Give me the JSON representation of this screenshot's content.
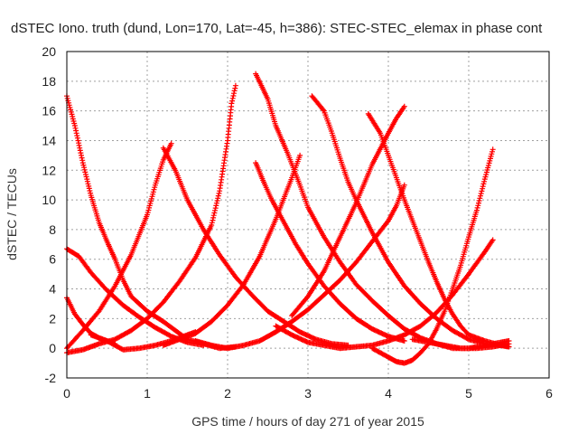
{
  "chart_data": {
    "type": "scatter",
    "title": "dSTEC Iono. truth (dund, Lon=170, Lat=-45, h=386): STEC-STEC_elemax in phase cont",
    "xlabel": "GPS time / hours of day 271 of year 2015",
    "ylabel": "dSTEC  / TECUs",
    "xlim": [
      0,
      6
    ],
    "ylim": [
      -2,
      20
    ],
    "x_ticks": [
      "0",
      "1",
      "2",
      "3",
      "4",
      "5",
      "6"
    ],
    "y_ticks": [
      "-2",
      "0",
      "2",
      "4",
      "6",
      "8",
      "10",
      "12",
      "14",
      "16",
      "18",
      "20"
    ],
    "grid": true,
    "marker": "+",
    "color": "#ff0000",
    "series": [
      {
        "points": [
          [
            0.0,
            17.0
          ],
          [
            0.1,
            15.0
          ],
          [
            0.2,
            12.5
          ],
          [
            0.3,
            10.3
          ],
          [
            0.4,
            8.5
          ],
          [
            0.5,
            7.2
          ],
          [
            0.6,
            6.0
          ],
          [
            0.7,
            4.6
          ],
          [
            0.8,
            3.5
          ],
          [
            1.0,
            2.5
          ],
          [
            1.2,
            1.8
          ],
          [
            1.4,
            1.0
          ],
          [
            1.5,
            0.6
          ],
          [
            1.7,
            0.3
          ],
          [
            1.9,
            0.0
          ],
          [
            2.1,
            0.1
          ]
        ]
      },
      {
        "points": [
          [
            0.0,
            3.4
          ],
          [
            0.1,
            2.3
          ],
          [
            0.2,
            1.6
          ],
          [
            0.3,
            1.0
          ],
          [
            0.4,
            0.7
          ],
          [
            0.5,
            0.5
          ],
          [
            0.6,
            0.3
          ]
        ]
      },
      {
        "points": [
          [
            0.0,
            6.7
          ],
          [
            0.15,
            6.2
          ],
          [
            0.3,
            5.1
          ],
          [
            0.5,
            3.9
          ],
          [
            0.7,
            2.9
          ],
          [
            0.9,
            2.1
          ],
          [
            1.1,
            1.4
          ],
          [
            1.3,
            0.8
          ],
          [
            1.5,
            0.4
          ],
          [
            1.7,
            0.2
          ]
        ]
      },
      {
        "points": [
          [
            0.0,
            -0.3
          ],
          [
            0.2,
            -0.1
          ],
          [
            0.4,
            0.3
          ],
          [
            0.6,
            0.6
          ],
          [
            0.8,
            1.2
          ],
          [
            1.0,
            2.0
          ],
          [
            1.2,
            3.1
          ],
          [
            1.4,
            4.5
          ],
          [
            1.6,
            6.1
          ],
          [
            1.8,
            8.3
          ],
          [
            1.9,
            10.6
          ],
          [
            2.0,
            14.0
          ],
          [
            2.05,
            16.5
          ],
          [
            2.1,
            17.7
          ]
        ]
      },
      {
        "points": [
          [
            0.0,
            0.0
          ],
          [
            0.2,
            1.2
          ],
          [
            0.4,
            2.5
          ],
          [
            0.6,
            4.2
          ],
          [
            0.8,
            6.3
          ],
          [
            1.0,
            9.0
          ],
          [
            1.1,
            11.0
          ],
          [
            1.2,
            12.7
          ],
          [
            1.3,
            13.8
          ]
        ]
      },
      {
        "points": [
          [
            1.2,
            13.5
          ],
          [
            1.35,
            12.0
          ],
          [
            1.5,
            10.0
          ],
          [
            1.7,
            8.0
          ],
          [
            1.9,
            6.3
          ],
          [
            2.1,
            4.8
          ],
          [
            2.3,
            3.6
          ],
          [
            2.5,
            2.5
          ],
          [
            2.7,
            1.8
          ],
          [
            2.9,
            1.1
          ],
          [
            3.1,
            0.6
          ],
          [
            3.3,
            0.3
          ],
          [
            3.5,
            0.2
          ]
        ]
      },
      {
        "points": [
          [
            0.3,
            0.9
          ],
          [
            0.5,
            0.5
          ],
          [
            0.7,
            -0.1
          ],
          [
            0.9,
            0.0
          ],
          [
            1.1,
            0.2
          ],
          [
            1.3,
            0.5
          ],
          [
            1.5,
            0.9
          ],
          [
            1.6,
            1.1
          ]
        ]
      },
      {
        "points": [
          [
            1.2,
            0.2
          ],
          [
            1.4,
            0.6
          ],
          [
            1.6,
            1.0
          ],
          [
            1.8,
            1.8
          ],
          [
            2.0,
            2.9
          ],
          [
            2.2,
            4.3
          ],
          [
            2.4,
            6.2
          ],
          [
            2.6,
            8.7
          ],
          [
            2.8,
            11.5
          ],
          [
            2.9,
            13.0
          ]
        ]
      },
      {
        "points": [
          [
            1.6,
            0.5
          ],
          [
            1.8,
            0.2
          ],
          [
            2.0,
            0.0
          ],
          [
            2.2,
            0.2
          ],
          [
            2.4,
            0.5
          ],
          [
            2.6,
            1.1
          ],
          [
            2.8,
            1.8
          ],
          [
            3.0,
            2.6
          ],
          [
            3.2,
            3.6
          ],
          [
            3.4,
            4.6
          ],
          [
            3.6,
            5.8
          ],
          [
            3.8,
            7.2
          ],
          [
            4.0,
            8.6
          ],
          [
            4.1,
            9.6
          ],
          [
            4.2,
            11.0
          ]
        ]
      },
      {
        "points": [
          [
            2.35,
            18.5
          ],
          [
            2.5,
            16.8
          ],
          [
            2.6,
            15.0
          ],
          [
            2.75,
            13.1
          ],
          [
            2.9,
            11.0
          ],
          [
            3.0,
            9.5
          ],
          [
            3.2,
            7.5
          ],
          [
            3.4,
            5.8
          ],
          [
            3.6,
            4.3
          ],
          [
            3.8,
            3.2
          ],
          [
            4.0,
            2.2
          ],
          [
            4.2,
            1.3
          ],
          [
            4.4,
            0.7
          ],
          [
            4.6,
            0.3
          ],
          [
            4.8,
            0.0
          ],
          [
            5.0,
            0.0
          ],
          [
            5.2,
            0.2
          ],
          [
            5.4,
            0.4
          ],
          [
            5.5,
            0.5
          ]
        ]
      },
      {
        "points": [
          [
            2.35,
            12.5
          ],
          [
            2.45,
            11.2
          ],
          [
            2.55,
            10.0
          ],
          [
            2.7,
            8.5
          ],
          [
            2.85,
            7.0
          ],
          [
            3.0,
            5.7
          ],
          [
            3.2,
            4.2
          ],
          [
            3.4,
            3.0
          ],
          [
            3.6,
            2.0
          ],
          [
            3.8,
            1.3
          ],
          [
            4.0,
            0.8
          ],
          [
            4.2,
            0.5
          ]
        ]
      },
      {
        "points": [
          [
            2.6,
            1.5
          ],
          [
            2.8,
            0.9
          ],
          [
            3.0,
            0.4
          ],
          [
            3.2,
            0.2
          ],
          [
            3.4,
            0.0
          ],
          [
            3.6,
            0.1
          ],
          [
            3.8,
            0.2
          ],
          [
            4.0,
            0.5
          ],
          [
            4.2,
            0.9
          ],
          [
            4.4,
            1.5
          ],
          [
            4.6,
            2.4
          ],
          [
            4.8,
            3.6
          ],
          [
            5.0,
            5.0
          ],
          [
            5.2,
            6.5
          ],
          [
            5.3,
            7.3
          ]
        ]
      },
      {
        "points": [
          [
            3.05,
            17.0
          ],
          [
            3.2,
            16.0
          ],
          [
            3.3,
            14.5
          ],
          [
            3.4,
            12.8
          ],
          [
            3.5,
            11.2
          ],
          [
            3.6,
            10.0
          ],
          [
            3.8,
            7.8
          ],
          [
            4.0,
            5.8
          ],
          [
            4.2,
            4.2
          ],
          [
            4.4,
            3.0
          ],
          [
            4.6,
            2.0
          ],
          [
            4.8,
            1.2
          ],
          [
            5.0,
            0.6
          ],
          [
            5.2,
            0.3
          ],
          [
            5.4,
            0.2
          ],
          [
            5.5,
            0.1
          ]
        ]
      },
      {
        "points": [
          [
            2.8,
            2.2
          ],
          [
            3.0,
            3.5
          ],
          [
            3.2,
            5.2
          ],
          [
            3.4,
            7.5
          ],
          [
            3.6,
            9.8
          ],
          [
            3.8,
            12.4
          ],
          [
            4.0,
            14.5
          ],
          [
            4.1,
            15.5
          ],
          [
            4.2,
            16.3
          ]
        ]
      },
      {
        "points": [
          [
            3.75,
            15.8
          ],
          [
            3.9,
            14.5
          ],
          [
            4.0,
            13.0
          ],
          [
            4.1,
            11.5
          ],
          [
            4.2,
            10.0
          ],
          [
            4.3,
            8.6
          ],
          [
            4.4,
            7.2
          ],
          [
            4.5,
            5.8
          ],
          [
            4.6,
            4.5
          ],
          [
            4.7,
            3.3
          ],
          [
            4.8,
            2.3
          ],
          [
            4.9,
            1.5
          ],
          [
            5.0,
            0.9
          ],
          [
            5.2,
            0.5
          ],
          [
            5.4,
            0.2
          ],
          [
            5.5,
            0.1
          ]
        ]
      },
      {
        "points": [
          [
            3.8,
            0.0
          ],
          [
            3.9,
            -0.3
          ],
          [
            4.0,
            -0.6
          ],
          [
            4.1,
            -0.9
          ],
          [
            4.2,
            -1.0
          ],
          [
            4.3,
            -0.8
          ],
          [
            4.4,
            -0.3
          ],
          [
            4.5,
            0.3
          ],
          [
            4.6,
            1.3
          ],
          [
            4.7,
            2.5
          ],
          [
            4.8,
            4.0
          ],
          [
            4.9,
            5.6
          ],
          [
            5.0,
            7.5
          ],
          [
            5.1,
            9.3
          ],
          [
            5.2,
            11.4
          ],
          [
            5.3,
            13.4
          ]
        ]
      },
      {
        "points": [
          [
            4.3,
            0.6
          ],
          [
            4.5,
            0.4
          ],
          [
            4.7,
            0.2
          ],
          [
            4.9,
            0.0
          ],
          [
            5.1,
            0.0
          ],
          [
            5.3,
            0.1
          ],
          [
            5.5,
            0.3
          ]
        ]
      }
    ]
  }
}
